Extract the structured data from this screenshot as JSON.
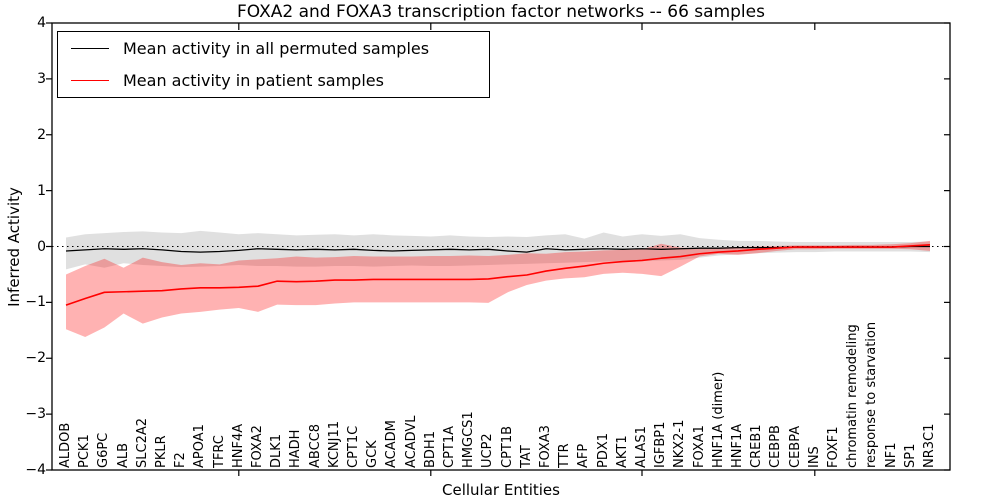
{
  "title": "FOXA2 and FOXA3 transcription factor networks -- 66 samples",
  "axes": {
    "xlabel": "Cellular Entities",
    "ylabel": "Inferred Activity",
    "y_ticks": [
      4,
      3,
      2,
      1,
      0,
      -1,
      -2,
      -3,
      -4
    ],
    "ylim": [
      -4,
      4
    ]
  },
  "legend": {
    "entries": [
      {
        "label": "Mean activity in all permuted samples",
        "color": "#000000"
      },
      {
        "label": "Mean activity in patient samples",
        "color": "#ff0000"
      }
    ]
  },
  "chart_data": {
    "type": "line",
    "title": "FOXA2 and FOXA3 transcription factor networks -- 66 samples",
    "xlabel": "Cellular Entities",
    "ylabel": "Inferred Activity",
    "ylim": [
      -4,
      4
    ],
    "grid": false,
    "zero_line": "dotted",
    "legend_position": "upper left",
    "categories": [
      "ALDOB",
      "PCK1",
      "G6PC",
      "ALB",
      "SLC2A2",
      "PKLR",
      "F2",
      "APOA1",
      "TFRC",
      "HNF4A",
      "FOXA2",
      "DLK1",
      "HADH",
      "ABCC8",
      "KCNJ11",
      "CPT1C",
      "GCK",
      "ACADM",
      "ACADVL",
      "BDH1",
      "CPT1A",
      "HMGCS1",
      "UCP2",
      "CPT1B",
      "TAT",
      "FOXA3",
      "TTR",
      "AFP",
      "PDX1",
      "AKT1",
      "ALAS1",
      "IGFBP1",
      "NKX2-1",
      "FOXA1",
      "HNF1A (dimer)",
      "HNF1A",
      "CREB1",
      "CEBPB",
      "CEBPA",
      "INS",
      "FOXF1",
      "chromatin remodeling",
      "response to starvation",
      "NF1",
      "SP1",
      "NR3C1"
    ],
    "x_major_tick_categories": [
      "HNF4A",
      "BDH1",
      "ALAS1",
      "INS"
    ],
    "series": [
      {
        "name": "Mean activity in all permuted samples",
        "color": "#000000",
        "line_width": 1.3,
        "band_color": "#000000",
        "band_opacity": 0.12,
        "values": [
          -0.08,
          -0.06,
          -0.04,
          -0.05,
          -0.04,
          -0.06,
          -0.09,
          -0.1,
          -0.09,
          -0.07,
          -0.04,
          -0.05,
          -0.06,
          -0.05,
          -0.06,
          -0.05,
          -0.07,
          -0.08,
          -0.07,
          -0.06,
          -0.05,
          -0.06,
          -0.05,
          -0.08,
          -0.1,
          -0.04,
          -0.06,
          -0.05,
          -0.04,
          -0.05,
          -0.04,
          -0.05,
          -0.04,
          -0.03,
          -0.03,
          -0.02,
          -0.02,
          -0.02,
          -0.01,
          -0.01,
          -0.01,
          -0.01,
          -0.01,
          -0.01,
          0.0,
          0.0
        ],
        "band_upper": [
          0.16,
          0.22,
          0.24,
          0.26,
          0.27,
          0.25,
          0.24,
          0.28,
          0.25,
          0.22,
          0.24,
          0.22,
          0.2,
          0.21,
          0.22,
          0.2,
          0.22,
          0.2,
          0.19,
          0.18,
          0.2,
          0.18,
          0.17,
          0.18,
          0.17,
          0.2,
          0.22,
          0.14,
          0.25,
          0.18,
          0.22,
          0.19,
          0.22,
          0.15,
          0.12,
          0.1,
          0.1,
          0.09,
          0.08,
          0.08,
          0.08,
          0.08,
          0.08,
          0.08,
          0.08,
          0.09
        ],
        "band_lower": [
          -0.41,
          -0.32,
          -0.38,
          -0.3,
          -0.33,
          -0.35,
          -0.37,
          -0.36,
          -0.35,
          -0.33,
          -0.35,
          -0.35,
          -0.36,
          -0.36,
          -0.35,
          -0.35,
          -0.36,
          -0.35,
          -0.34,
          -0.35,
          -0.35,
          -0.34,
          -0.33,
          -0.32,
          -0.31,
          -0.3,
          -0.29,
          -0.28,
          -0.27,
          -0.26,
          -0.26,
          -0.25,
          -0.24,
          -0.2,
          -0.16,
          -0.14,
          -0.12,
          -0.11,
          -0.1,
          -0.1,
          -0.09,
          -0.09,
          -0.09,
          -0.09,
          -0.09,
          -0.1
        ]
      },
      {
        "name": "Mean activity in patient samples",
        "color": "#ff0000",
        "line_width": 1.6,
        "band_color": "#ff0000",
        "band_opacity": 0.3,
        "values": [
          -1.05,
          -0.93,
          -0.82,
          -0.81,
          -0.8,
          -0.79,
          -0.76,
          -0.74,
          -0.74,
          -0.73,
          -0.71,
          -0.62,
          -0.63,
          -0.62,
          -0.6,
          -0.6,
          -0.59,
          -0.59,
          -0.59,
          -0.59,
          -0.59,
          -0.59,
          -0.58,
          -0.54,
          -0.51,
          -0.44,
          -0.39,
          -0.35,
          -0.3,
          -0.27,
          -0.25,
          -0.21,
          -0.18,
          -0.13,
          -0.1,
          -0.08,
          -0.05,
          -0.03,
          -0.01,
          -0.01,
          -0.01,
          -0.01,
          -0.01,
          -0.01,
          0.01,
          0.03
        ],
        "band_upper": [
          -0.5,
          -0.35,
          -0.22,
          -0.38,
          -0.2,
          -0.28,
          -0.33,
          -0.3,
          -0.32,
          -0.25,
          -0.23,
          -0.21,
          -0.18,
          -0.2,
          -0.19,
          -0.17,
          -0.18,
          -0.18,
          -0.18,
          -0.17,
          -0.17,
          -0.16,
          -0.17,
          -0.15,
          -0.12,
          -0.13,
          -0.1,
          -0.09,
          -0.07,
          -0.06,
          -0.05,
          0.05,
          -0.02,
          -0.03,
          -0.02,
          -0.01,
          0.0,
          0.01,
          0.02,
          0.02,
          0.02,
          0.03,
          0.03,
          0.04,
          0.06,
          0.1
        ],
        "band_lower": [
          -1.48,
          -1.62,
          -1.45,
          -1.2,
          -1.38,
          -1.27,
          -1.2,
          -1.17,
          -1.13,
          -1.1,
          -1.17,
          -1.04,
          -1.05,
          -1.05,
          -1.02,
          -1.0,
          -1.0,
          -1.0,
          -1.0,
          -1.0,
          -1.0,
          -1.0,
          -1.01,
          -0.82,
          -0.69,
          -0.61,
          -0.57,
          -0.55,
          -0.49,
          -0.47,
          -0.49,
          -0.53,
          -0.36,
          -0.18,
          -0.13,
          -0.15,
          -0.12,
          -0.08,
          -0.05,
          -0.05,
          -0.04,
          -0.04,
          -0.04,
          -0.04,
          -0.05,
          -0.08
        ]
      }
    ]
  }
}
